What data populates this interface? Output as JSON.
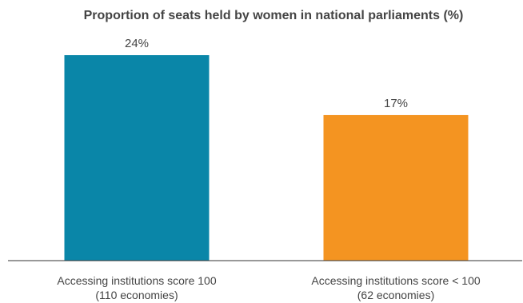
{
  "chart_data": {
    "type": "bar",
    "title": "Proportion of seats held by women in national parliaments (%)",
    "xlabel": "",
    "ylabel": "",
    "ylim": [
      0,
      24
    ],
    "grid": false,
    "legend": "none",
    "categories": [
      [
        "Accessing institutions score 100",
        "(110 economies)"
      ],
      [
        "Accessing institutions score < 100",
        "(62 economies)"
      ]
    ],
    "values": [
      24,
      17
    ],
    "value_labels": [
      "24%",
      "17%"
    ],
    "colors": [
      "#0a86a8",
      "#f49421"
    ],
    "text_color": "#444444",
    "baseline_color": "#333333"
  }
}
